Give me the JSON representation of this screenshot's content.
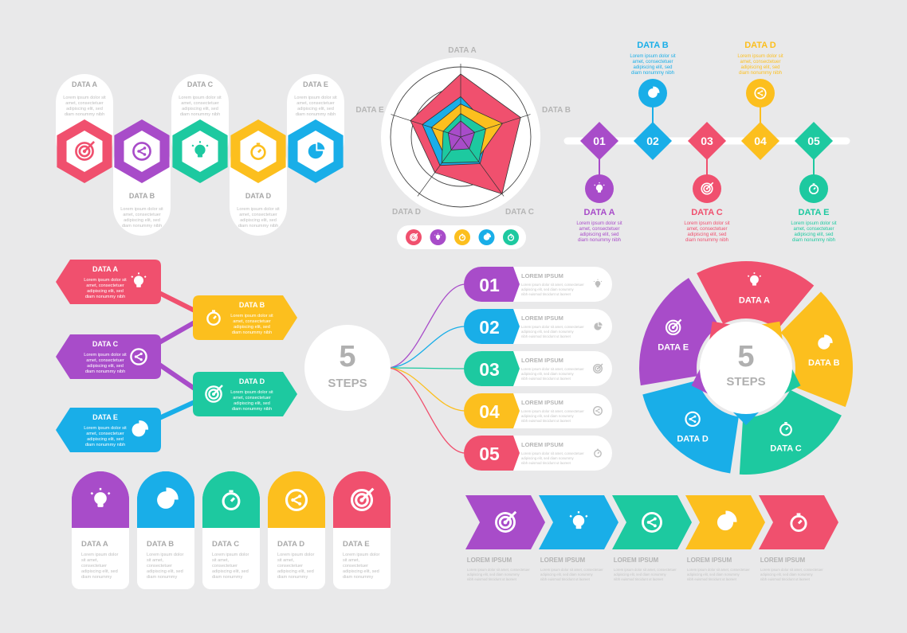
{
  "colors": {
    "pink": "#f0506e",
    "purple": "#a84cc9",
    "green": "#1dc9a0",
    "yellow": "#fcbf1e",
    "blue": "#19aee8",
    "gray_text": "#b9b9b9",
    "dark_text": "#a9a9a9"
  },
  "lorem_lines": [
    "Lorem ipsum dolor sit",
    "amet, consectetuer",
    "adipiscing elit, sed",
    "diam nonummy nibh"
  ],
  "lorem_small": [
    "Lorem ipsum dolor sit amet, consectetuer",
    "adipiscing elit, sed diam nonummy",
    "nibh euismod tincidunt ut laoreet"
  ],
  "lorem_short": [
    "Lorem ipsum dolor",
    "sit amet,",
    "consectetuer",
    "adipiscing elit, sed",
    "diam nonummy"
  ],
  "hexagons": {
    "items": [
      {
        "label": "DATA A",
        "icon": "target-icon",
        "color": "pink",
        "position": "top"
      },
      {
        "label": "DATA B",
        "icon": "share-icon",
        "color": "purple",
        "position": "bottom"
      },
      {
        "label": "DATA C",
        "icon": "lightbulb-icon",
        "color": "green",
        "position": "top"
      },
      {
        "label": "DATA D",
        "icon": "stopwatch-icon",
        "color": "yellow",
        "position": "bottom"
      },
      {
        "label": "DATA E",
        "icon": "pie-icon",
        "color": "blue",
        "position": "top"
      }
    ]
  },
  "radar": {
    "axis_labels": [
      "DATA A",
      "DATA B",
      "DATA C",
      "DATA D",
      "DATA E"
    ],
    "series": [
      {
        "color": "pink",
        "values": [
          0.86,
          0.86,
          0.96,
          0.6,
          0.72
        ]
      },
      {
        "color": "blue",
        "values": [
          0.55,
          0.42,
          0.45,
          0.48,
          0.55
        ]
      },
      {
        "color": "yellow",
        "values": [
          0.45,
          0.6,
          0.38,
          0.35,
          0.42
        ]
      },
      {
        "color": "green",
        "values": [
          0.32,
          0.36,
          0.42,
          0.44,
          0.25
        ]
      },
      {
        "color": "purple",
        "values": [
          0.22,
          0.2,
          0.2,
          0.22,
          0.18
        ]
      }
    ],
    "legend": [
      {
        "icon": "target-icon",
        "color": "pink"
      },
      {
        "icon": "lightbulb-icon",
        "color": "purple"
      },
      {
        "icon": "stopwatch-icon",
        "color": "yellow"
      },
      {
        "icon": "pie-icon",
        "color": "blue"
      },
      {
        "icon": "stopwatch-icon",
        "color": "green"
      }
    ]
  },
  "timeline": {
    "items": [
      {
        "num": "01",
        "label": "DATA A",
        "color": "purple",
        "icon": "lightbulb-icon",
        "position": "bottom"
      },
      {
        "num": "02",
        "label": "DATA B",
        "color": "blue",
        "icon": "pie-icon",
        "position": "top"
      },
      {
        "num": "03",
        "label": "DATA C",
        "color": "pink",
        "icon": "target-icon",
        "position": "bottom"
      },
      {
        "num": "04",
        "label": "DATA D",
        "color": "yellow",
        "icon": "share-icon",
        "position": "top"
      },
      {
        "num": "05",
        "label": "DATA E",
        "color": "green",
        "icon": "stopwatch-icon",
        "position": "bottom"
      }
    ]
  },
  "flow": {
    "items": [
      {
        "label": "DATA A",
        "color": "pink",
        "icon": "lightbulb-icon",
        "side": "left"
      },
      {
        "label": "DATA B",
        "color": "yellow",
        "icon": "stopwatch-icon",
        "side": "right"
      },
      {
        "label": "DATA C",
        "color": "purple",
        "icon": "share-icon",
        "side": "left"
      },
      {
        "label": "DATA D",
        "color": "green",
        "icon": "target-icon",
        "side": "right"
      },
      {
        "label": "DATA E",
        "color": "blue",
        "icon": "pie-icon",
        "side": "left"
      }
    ]
  },
  "steps": {
    "num": "5",
    "word": "STEPS",
    "items": [
      {
        "num": "01",
        "title": "LOREM IPSUM",
        "color": "purple",
        "icon": "lightbulb-icon"
      },
      {
        "num": "02",
        "title": "LOREM IPSUM",
        "color": "blue",
        "icon": "pie-icon"
      },
      {
        "num": "03",
        "title": "LOREM IPSUM",
        "color": "green",
        "icon": "target-icon"
      },
      {
        "num": "04",
        "title": "LOREM IPSUM",
        "color": "yellow",
        "icon": "share-icon"
      },
      {
        "num": "05",
        "title": "LOREM IPSUM",
        "color": "pink",
        "icon": "stopwatch-icon"
      }
    ]
  },
  "ring": {
    "num": "5",
    "word": "STEPS",
    "segments": [
      {
        "label": "DATA A",
        "color": "pink",
        "icon": "lightbulb-icon"
      },
      {
        "label": "DATA B",
        "color": "yellow",
        "icon": "pie-icon"
      },
      {
        "label": "DATA C",
        "color": "green",
        "icon": "stopwatch-icon"
      },
      {
        "label": "DATA D",
        "color": "blue",
        "icon": "share-icon"
      },
      {
        "label": "DATA E",
        "color": "purple",
        "icon": "target-icon"
      }
    ]
  },
  "cards": {
    "items": [
      {
        "label": "DATA A",
        "color": "purple",
        "icon": "lightbulb-icon"
      },
      {
        "label": "DATA B",
        "color": "blue",
        "icon": "pie-icon"
      },
      {
        "label": "DATA C",
        "color": "green",
        "icon": "stopwatch-icon"
      },
      {
        "label": "DATA D",
        "color": "yellow",
        "icon": "share-icon"
      },
      {
        "label": "DATA E",
        "color": "pink",
        "icon": "target-icon"
      }
    ]
  },
  "arrows": {
    "items": [
      {
        "title": "LOREM IPSUM",
        "color": "purple",
        "icon": "target-icon"
      },
      {
        "title": "LOREM IPSUM",
        "color": "blue",
        "icon": "lightbulb-icon"
      },
      {
        "title": "LOREM IPSUM",
        "color": "green",
        "icon": "share-icon"
      },
      {
        "title": "LOREM IPSUM",
        "color": "yellow",
        "icon": "pie-icon"
      },
      {
        "title": "LOREM IPSUM",
        "color": "pink",
        "icon": "stopwatch-icon"
      }
    ]
  }
}
